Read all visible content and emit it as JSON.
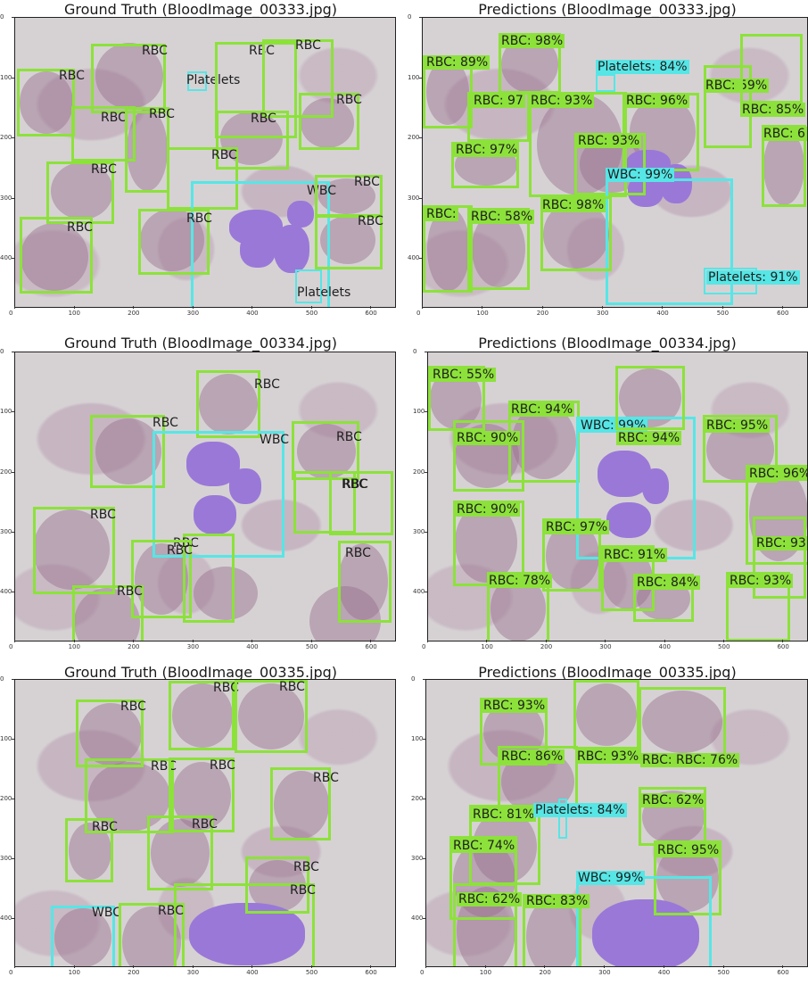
{
  "panels": [
    {
      "title": "Ground Truth (BloodImage_00333.jpg)",
      "kind": "gt",
      "xticks": [
        "0",
        "100",
        "200",
        "300",
        "400",
        "500",
        "600"
      ],
      "yticks": [
        "0",
        "100",
        "200",
        "300",
        "400"
      ],
      "detections": [
        {
          "label": "RBC",
          "cls": "rbc"
        },
        {
          "label": "RBC",
          "cls": "rbc"
        },
        {
          "label": "RBC",
          "cls": "rbc"
        },
        {
          "label": "Platelets",
          "cls": "platelets"
        },
        {
          "label": "RBC",
          "cls": "rbc"
        },
        {
          "label": "RBC",
          "cls": "rbc"
        },
        {
          "label": "RBC",
          "cls": "rbc"
        },
        {
          "label": "RBC",
          "cls": "rbc"
        },
        {
          "label": "RBC",
          "cls": "rbc"
        },
        {
          "label": "RBC",
          "cls": "rbc"
        },
        {
          "label": "RBC",
          "cls": "rbc"
        },
        {
          "label": "WBC",
          "cls": "wbc"
        },
        {
          "label": "RBC",
          "cls": "rbc"
        },
        {
          "label": "RBC",
          "cls": "rbc"
        },
        {
          "label": "RBC",
          "cls": "rbc"
        },
        {
          "label": "RBC",
          "cls": "rbc"
        },
        {
          "label": "Platelets",
          "cls": "platelets"
        }
      ]
    },
    {
      "title": "Predictions (BloodImage_00333.jpg)",
      "kind": "pred",
      "xticks": [
        "0",
        "100",
        "200",
        "300",
        "400",
        "500",
        "600"
      ],
      "yticks": [
        "0",
        "100",
        "200",
        "300",
        "400"
      ],
      "detections": [
        {
          "label": "RBC: 98%",
          "cls": "rbc"
        },
        {
          "label": "RBC: 89%",
          "cls": "rbc"
        },
        {
          "label": "Platelets: 84%",
          "cls": "platelets"
        },
        {
          "label": "RBC: 59%",
          "cls": "rbc"
        },
        {
          "label": "RBC: 85%",
          "cls": "rbc"
        },
        {
          "label": "RBC: 97",
          "cls": "rbc"
        },
        {
          "label": "RBC: 93%",
          "cls": "rbc"
        },
        {
          "label": "RBC: 96%",
          "cls": "rbc"
        },
        {
          "label": "RBC: 6",
          "cls": "rbc"
        },
        {
          "label": "RBC: 93%",
          "cls": "rbc"
        },
        {
          "label": "RBC: 97%",
          "cls": "rbc"
        },
        {
          "label": "WBC: 99%",
          "cls": "wbc"
        },
        {
          "label": "RBC: 98%",
          "cls": "rbc"
        },
        {
          "label": "RBC: ",
          "cls": "rbc"
        },
        {
          "label": "RBC: 58%",
          "cls": "rbc"
        },
        {
          "label": "Platelets: 91%",
          "cls": "platelets"
        }
      ]
    },
    {
      "title": "Ground Truth (BloodImage_00334.jpg)",
      "kind": "gt",
      "xticks": [
        "0",
        "100",
        "200",
        "300",
        "400",
        "500",
        "600"
      ],
      "yticks": [
        "0",
        "100",
        "200",
        "300",
        "400"
      ],
      "detections": [
        {
          "label": "RBC",
          "cls": "rbc"
        },
        {
          "label": "RBC",
          "cls": "rbc"
        },
        {
          "label": "WBC",
          "cls": "wbc"
        },
        {
          "label": "RBC",
          "cls": "rbc"
        },
        {
          "label": "RBC",
          "cls": "rbc"
        },
        {
          "label": "RBC",
          "cls": "rbc"
        },
        {
          "label": "RBC",
          "cls": "rbc"
        },
        {
          "label": "RBC",
          "cls": "rbc"
        },
        {
          "label": "RBC",
          "cls": "rbc"
        },
        {
          "label": "RBC",
          "cls": "rbc"
        },
        {
          "label": "RBC",
          "cls": "rbc"
        }
      ]
    },
    {
      "title": "Predictions (BloodImage_00334.jpg)",
      "kind": "pred",
      "xticks": [
        "0",
        "100",
        "200",
        "300",
        "400",
        "500",
        "600"
      ],
      "yticks": [
        "0",
        "100",
        "200",
        "300",
        "400"
      ],
      "detections": [
        {
          "label": "RBC: 55%",
          "cls": "rbc"
        },
        {
          "label": "RBC: 94%",
          "cls": "rbc"
        },
        {
          "label": "WBC: 99%",
          "cls": "wbc"
        },
        {
          "label": "RBC: 95%",
          "cls": "rbc"
        },
        {
          "label": "RBC: 90%",
          "cls": "rbc"
        },
        {
          "label": "RBC: 94%",
          "cls": "rbc"
        },
        {
          "label": "RBC: 96%",
          "cls": "rbc"
        },
        {
          "label": "RBC: 90%",
          "cls": "rbc"
        },
        {
          "label": "RBC: 97%",
          "cls": "rbc"
        },
        {
          "label": "RBC: 93",
          "cls": "rbc"
        },
        {
          "label": "RBC: 91%",
          "cls": "rbc"
        },
        {
          "label": "RBC: 78%",
          "cls": "rbc"
        },
        {
          "label": "RBC: 84%",
          "cls": "rbc"
        },
        {
          "label": "RBC: 93%",
          "cls": "rbc"
        }
      ]
    },
    {
      "title": "Ground Truth (BloodImage_00335.jpg)",
      "kind": "gt",
      "xticks": [
        "0",
        "100",
        "200",
        "300",
        "400",
        "500",
        "600"
      ],
      "yticks": [
        "0",
        "100",
        "200",
        "300",
        "400"
      ],
      "detections": [
        {
          "label": "RBC",
          "cls": "rbc"
        },
        {
          "label": "RBC",
          "cls": "rbc"
        },
        {
          "label": "RBC",
          "cls": "rbc"
        },
        {
          "label": "RBC",
          "cls": "rbc"
        },
        {
          "label": "RBC",
          "cls": "rbc"
        },
        {
          "label": "RBC",
          "cls": "rbc"
        },
        {
          "label": "RBC",
          "cls": "rbc"
        },
        {
          "label": "RBC",
          "cls": "rbc"
        },
        {
          "label": "RBC",
          "cls": "rbc"
        },
        {
          "label": "RBC",
          "cls": "rbc"
        },
        {
          "label": "WBC",
          "cls": "wbc"
        },
        {
          "label": "RBC",
          "cls": "rbc"
        },
        {
          "label": "RBC",
          "cls": "rbc"
        }
      ]
    },
    {
      "title": "Predictions (BloodImage_00335.jpg)",
      "kind": "pred",
      "xticks": [
        "0",
        "100",
        "200",
        "300",
        "400",
        "500",
        "600"
      ],
      "yticks": [
        "0",
        "100",
        "200",
        "300",
        "400"
      ],
      "detections": [
        {
          "label": "RBC: 93%",
          "cls": "rbc"
        },
        {
          "label": "RBC: 86%",
          "cls": "rbc"
        },
        {
          "label": "RBC: 93%",
          "cls": "rbc"
        },
        {
          "label": "RBC: RBC: 76%",
          "cls": "rbc"
        },
        {
          "label": "RBC: 62%",
          "cls": "rbc"
        },
        {
          "label": "RBC: 81%",
          "cls": "rbc"
        },
        {
          "label": "Platelets: 84%",
          "cls": "platelets"
        },
        {
          "label": "RBC: 74%",
          "cls": "rbc"
        },
        {
          "label": "RBC: 95%",
          "cls": "rbc"
        },
        {
          "label": "WBC: 99%",
          "cls": "wbc"
        },
        {
          "label": "RBC: 62%",
          "cls": "rbc"
        },
        {
          "label": "RBC: 83%",
          "cls": "rbc"
        }
      ]
    }
  ],
  "colors": {
    "rbc_box": "#8ce23a",
    "wbc_box": "#56e6e6",
    "platelets_box": "#56e6e6"
  }
}
